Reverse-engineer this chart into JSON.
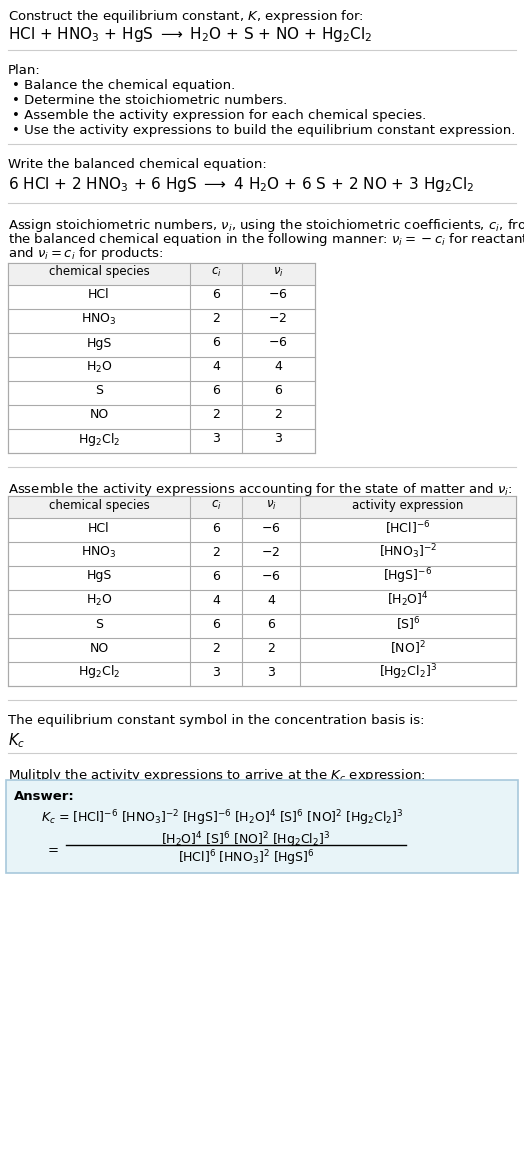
{
  "title_line1": "Construct the equilibrium constant, $K$, expression for:",
  "title_line2": "HCl + HNO$_3$ + HgS $\\longrightarrow$ H$_2$O + S + NO + Hg$_2$Cl$_2$",
  "plan_header": "Plan:",
  "plan_bullets": [
    "Balance the chemical equation.",
    "Determine the stoichiometric numbers.",
    "Assemble the activity expression for each chemical species.",
    "Use the activity expressions to build the equilibrium constant expression."
  ],
  "balanced_header": "Write the balanced chemical equation:",
  "balanced_eq": "6 HCl + 2 HNO$_3$ + 6 HgS $\\longrightarrow$ 4 H$_2$O + 6 S + 2 NO + 3 Hg$_2$Cl$_2$",
  "table1_headers": [
    "chemical species",
    "$c_i$",
    "$\\nu_i$"
  ],
  "table1_rows": [
    [
      "HCl",
      "6",
      "$-6$"
    ],
    [
      "HNO$_3$",
      "2",
      "$-2$"
    ],
    [
      "HgS",
      "6",
      "$-6$"
    ],
    [
      "H$_2$O",
      "4",
      "4"
    ],
    [
      "S",
      "6",
      "6"
    ],
    [
      "NO",
      "2",
      "2"
    ],
    [
      "Hg$_2$Cl$_2$",
      "3",
      "3"
    ]
  ],
  "activity_header": "Assemble the activity expressions accounting for the state of matter and $\\nu_i$:",
  "table2_headers": [
    "chemical species",
    "$c_i$",
    "$\\nu_i$",
    "activity expression"
  ],
  "table2_rows": [
    [
      "HCl",
      "6",
      "$-6$",
      "[HCl]$^{-6}$"
    ],
    [
      "HNO$_3$",
      "2",
      "$-2$",
      "[HNO$_3$]$^{-2}$"
    ],
    [
      "HgS",
      "6",
      "$-6$",
      "[HgS]$^{-6}$"
    ],
    [
      "H$_2$O",
      "4",
      "4",
      "[H$_2$O]$^4$"
    ],
    [
      "S",
      "6",
      "6",
      "[S]$^6$"
    ],
    [
      "NO",
      "2",
      "2",
      "[NO]$^2$"
    ],
    [
      "Hg$_2$Cl$_2$",
      "3",
      "3",
      "[Hg$_2$Cl$_2$]$^3$"
    ]
  ],
  "kc_header": "The equilibrium constant symbol in the concentration basis is:",
  "kc_symbol": "$K_c$",
  "multiply_header": "Mulitply the activity expressions to arrive at the $K_c$ expression:",
  "answer_label": "Answer:",
  "bg_color": "#ffffff",
  "answer_box_color": "#e8f4f8",
  "answer_box_border": "#a8c8dc",
  "table_line_color": "#aaaaaa",
  "hline_color": "#cccccc",
  "font_size": 9.5,
  "small_font": 8.5
}
